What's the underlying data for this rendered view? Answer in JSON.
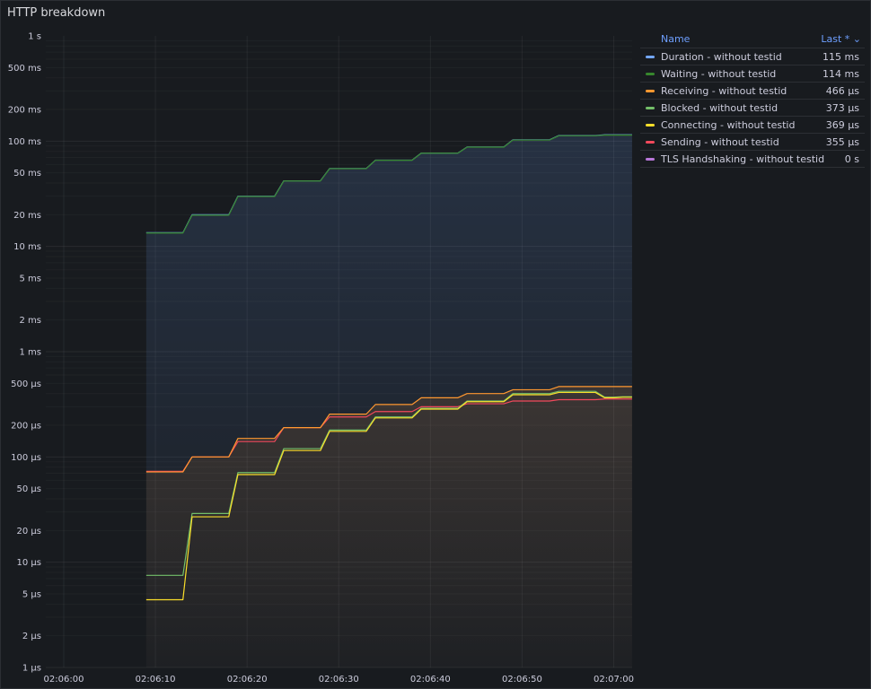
{
  "panel": {
    "title": "HTTP breakdown"
  },
  "legend": {
    "header_name": "Name",
    "header_last": "Last * ⌄",
    "items": [
      {
        "name": "Duration - without testid",
        "value": "115 ms",
        "color": "#73a7ff"
      },
      {
        "name": "Waiting - without testid",
        "value": "114 ms",
        "color": "#37872d"
      },
      {
        "name": "Receiving - without testid",
        "value": "466 µs",
        "color": "#ff9830"
      },
      {
        "name": "Blocked - without testid",
        "value": "373 µs",
        "color": "#73bf69"
      },
      {
        "name": "Connecting - without testid",
        "value": "369 µs",
        "color": "#fade2a"
      },
      {
        "name": "Sending - without testid",
        "value": "355 µs",
        "color": "#f2495c"
      },
      {
        "name": "TLS Handshaking - without testid",
        "value": "0 s",
        "color": "#b877d9"
      }
    ]
  },
  "chart_data": {
    "type": "line",
    "title": "HTTP breakdown",
    "yscale": "log",
    "ylim_seconds": [
      1e-06,
      1
    ],
    "xlim_seconds_after_0206": [
      0,
      62
    ],
    "y_ticks": [
      {
        "label": "1 s",
        "value": 1
      },
      {
        "label": "500 ms",
        "value": 0.5
      },
      {
        "label": "200 ms",
        "value": 0.2
      },
      {
        "label": "100 ms",
        "value": 0.1
      },
      {
        "label": "50 ms",
        "value": 0.05
      },
      {
        "label": "20 ms",
        "value": 0.02
      },
      {
        "label": "10 ms",
        "value": 0.01
      },
      {
        "label": "5 ms",
        "value": 0.005
      },
      {
        "label": "2 ms",
        "value": 0.002
      },
      {
        "label": "1 ms",
        "value": 0.001
      },
      {
        "label": "500 µs",
        "value": 0.0005
      },
      {
        "label": "200 µs",
        "value": 0.0002
      },
      {
        "label": "100 µs",
        "value": 0.0001
      },
      {
        "label": "50 µs",
        "value": 5e-05
      },
      {
        "label": "20 µs",
        "value": 2e-05
      },
      {
        "label": "10 µs",
        "value": 1e-05
      },
      {
        "label": "5 µs",
        "value": 5e-06
      },
      {
        "label": "2 µs",
        "value": 2e-06
      },
      {
        "label": "1 µs",
        "value": 1e-06
      }
    ],
    "x_ticks": [
      {
        "label": "02:06:00",
        "value": 0
      },
      {
        "label": "02:06:10",
        "value": 10
      },
      {
        "label": "02:06:20",
        "value": 20
      },
      {
        "label": "02:06:30",
        "value": 30
      },
      {
        "label": "02:06:40",
        "value": 40
      },
      {
        "label": "02:06:50",
        "value": 50
      },
      {
        "label": "02:07:00",
        "value": 60
      }
    ],
    "grid": true,
    "legend_position": "right",
    "series": [
      {
        "name": "Duration - without testid",
        "color": "#73a7ff",
        "x": [
          9,
          13,
          14,
          18,
          19,
          23,
          24,
          28,
          29,
          33,
          34,
          38,
          39,
          43,
          44,
          48,
          49,
          53,
          54,
          58,
          59,
          62
        ],
        "y": [
          0.0135,
          0.0135,
          0.02,
          0.02,
          0.03,
          0.03,
          0.042,
          0.042,
          0.055,
          0.055,
          0.066,
          0.066,
          0.077,
          0.077,
          0.088,
          0.088,
          0.103,
          0.103,
          0.113,
          0.113,
          0.115,
          0.115
        ]
      },
      {
        "name": "Waiting - without testid",
        "color": "#37872d",
        "x": [
          9,
          13,
          14,
          18,
          19,
          23,
          24,
          28,
          29,
          33,
          34,
          38,
          39,
          43,
          44,
          48,
          49,
          53,
          54,
          58,
          59,
          62
        ],
        "y": [
          0.0134,
          0.0134,
          0.0198,
          0.0198,
          0.0298,
          0.0298,
          0.0418,
          0.0418,
          0.0548,
          0.0548,
          0.0658,
          0.0658,
          0.0768,
          0.0768,
          0.0878,
          0.0878,
          0.1025,
          0.1025,
          0.1125,
          0.1125,
          0.114,
          0.114
        ]
      },
      {
        "name": "Receiving - without testid",
        "color": "#ff9830",
        "x": [
          9,
          13,
          14,
          18,
          19,
          23,
          24,
          28,
          29,
          33,
          34,
          38,
          39,
          43,
          44,
          48,
          49,
          53,
          54,
          58,
          59,
          62
        ],
        "y": [
          7.2e-05,
          7.2e-05,
          0.0001,
          0.0001,
          0.00015,
          0.00015,
          0.00019,
          0.00019,
          0.000255,
          0.000255,
          0.000315,
          0.000315,
          0.000365,
          0.000365,
          0.0004,
          0.0004,
          0.000435,
          0.000435,
          0.000466,
          0.000466,
          0.000466,
          0.000466
        ]
      },
      {
        "name": "Blocked - without testid",
        "color": "#73bf69",
        "x": [
          9,
          13,
          14,
          18,
          19,
          23,
          24,
          28,
          29,
          33,
          34,
          38,
          39,
          43,
          44,
          48,
          49,
          53,
          54,
          58,
          59,
          60,
          61,
          62
        ],
        "y": [
          7.5e-06,
          7.5e-06,
          2.9e-05,
          2.9e-05,
          7.1e-05,
          7.1e-05,
          0.00012,
          0.00012,
          0.00018,
          0.00018,
          0.00024,
          0.00024,
          0.00029,
          0.00029,
          0.00034,
          0.00034,
          0.0004,
          0.0004,
          0.00042,
          0.00042,
          0.00037,
          0.00037,
          0.000373,
          0.000373
        ]
      },
      {
        "name": "Connecting - without testid",
        "color": "#fade2a",
        "x": [
          9,
          13,
          14,
          18,
          19,
          23,
          24,
          28,
          29,
          33,
          34,
          38,
          39,
          43,
          44,
          48,
          49,
          53,
          54,
          58,
          59,
          60,
          61,
          62
        ],
        "y": [
          4.4e-06,
          4.4e-06,
          2.7e-05,
          2.7e-05,
          6.8e-05,
          6.8e-05,
          0.000115,
          0.000115,
          0.000175,
          0.000175,
          0.000235,
          0.000235,
          0.000285,
          0.000285,
          0.000335,
          0.000335,
          0.00039,
          0.00039,
          0.00041,
          0.00041,
          0.000365,
          0.000365,
          0.000369,
          0.000369
        ]
      },
      {
        "name": "Sending - without testid",
        "color": "#f2495c",
        "x": [
          9,
          13,
          14,
          18,
          19,
          23,
          24,
          28,
          29,
          33,
          34,
          38,
          39,
          43,
          44,
          48,
          49,
          53,
          54,
          58,
          59,
          62
        ],
        "y": [
          7.3e-05,
          7.3e-05,
          0.0001,
          0.0001,
          0.00014,
          0.00014,
          0.00019,
          0.00019,
          0.00024,
          0.00024,
          0.00027,
          0.00027,
          0.0003,
          0.0003,
          0.00032,
          0.00032,
          0.00034,
          0.00034,
          0.00035,
          0.00035,
          0.000355,
          0.000355
        ]
      },
      {
        "name": "TLS Handshaking - without testid",
        "color": "#b877d9",
        "x": [],
        "y": []
      }
    ]
  }
}
